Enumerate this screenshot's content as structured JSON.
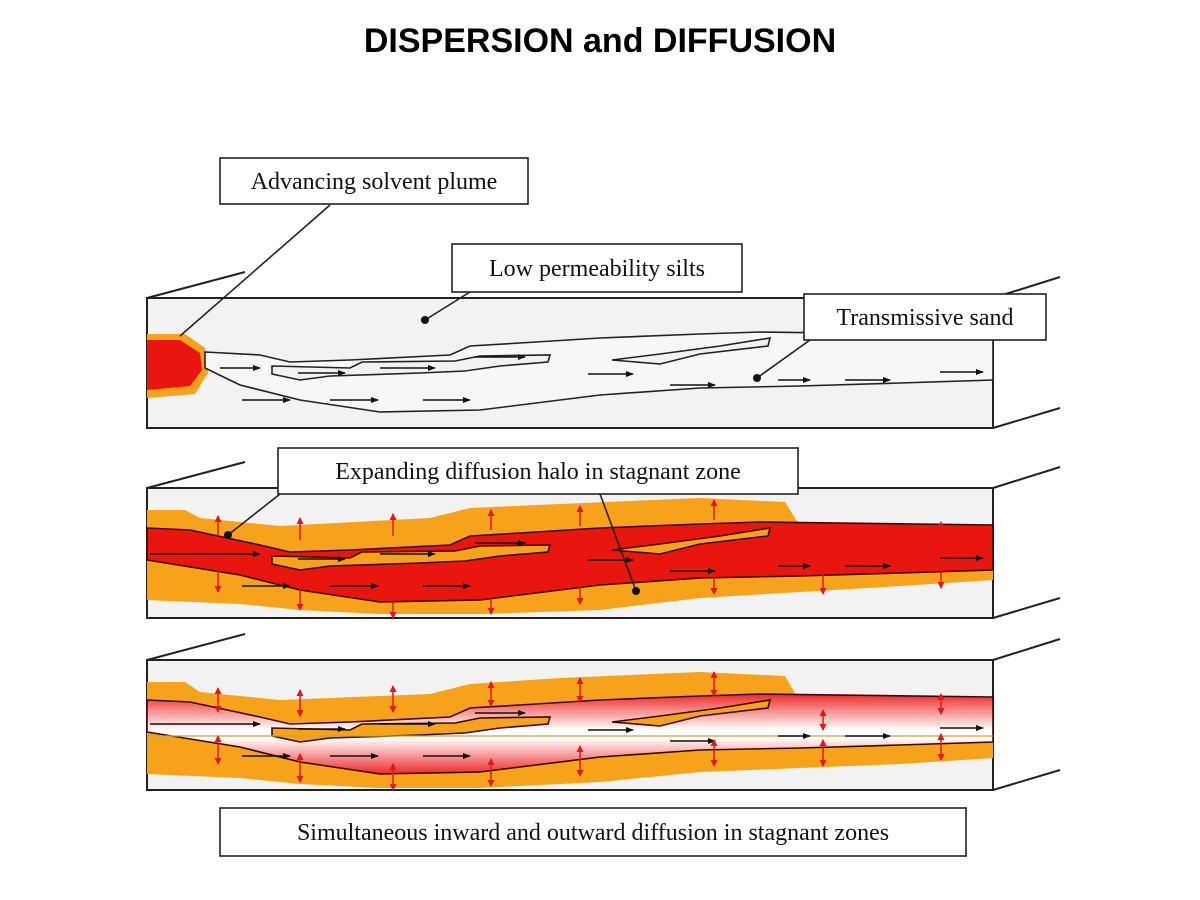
{
  "title": "DISPERSION and DIFFUSION",
  "labels": {
    "plume": "Advancing solvent plume",
    "silts": "Low permeability silts",
    "sand": "Transmissive sand",
    "halo": "Expanding diffusion halo in stagnant zone",
    "simultaneous": "Simultaneous inward and outward diffusion in stagnant zones"
  },
  "colors": {
    "solvent": "#e8160e",
    "halo": "#f7a21b",
    "silt": "#f2f2f2",
    "outline": "#1a1a1a",
    "diffusion_arrow": "#e01818"
  }
}
